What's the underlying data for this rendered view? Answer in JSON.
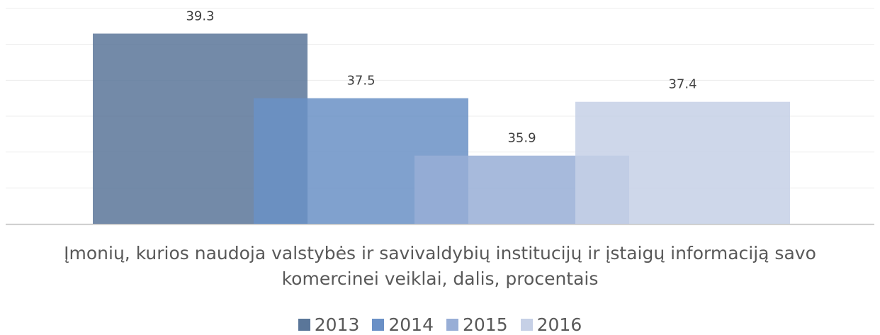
{
  "chart_data": {
    "type": "bar",
    "title": "Įmonių, kurios naudoja valstybės ir savivaldybių institucijų ir įstaigų informaciją savo komercinei veiklai, dalis, procentais",
    "categories": [
      null
    ],
    "series": [
      {
        "name": "2013",
        "color": "#5a7699",
        "values": [
          39.3
        ]
      },
      {
        "name": "2014",
        "color": "#6a90c6",
        "values": [
          37.5
        ]
      },
      {
        "name": "2015",
        "color": "#98aed6",
        "values": [
          35.9
        ]
      },
      {
        "name": "2016",
        "color": "#c6d0e6",
        "values": [
          37.4
        ]
      }
    ],
    "ylim": [
      34,
      40
    ],
    "yticks": [
      34,
      35,
      36,
      37,
      38,
      39,
      40
    ],
    "grid": true,
    "legend": "bottom"
  }
}
